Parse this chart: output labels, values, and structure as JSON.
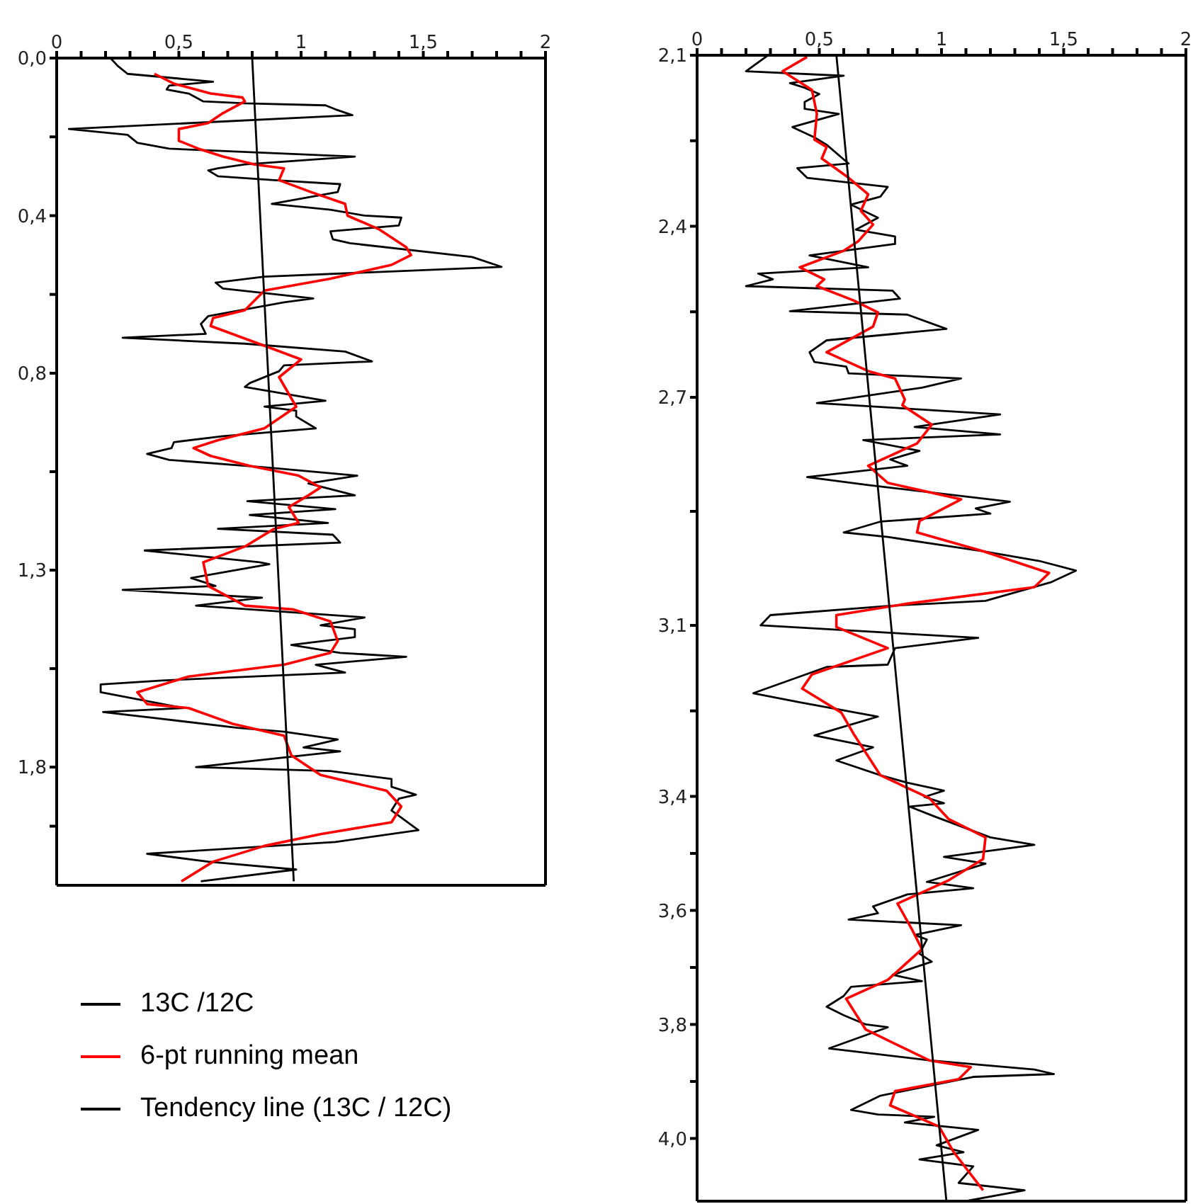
{
  "chart_data": [
    {
      "type": "line",
      "orientation": "horizontal",
      "legend": "bottom",
      "xlim": [
        0,
        2
      ],
      "xticks": [
        0,
        {
          "value": 0.1,
          "label": null
        },
        {
          "value": 0.2,
          "label": null
        },
        {
          "value": 0.3,
          "label": null
        },
        {
          "value": 0.4,
          "label": null
        },
        {
          "value": 0.5,
          "label": "0,5"
        },
        {
          "value": 0.6,
          "label": null
        },
        {
          "value": 0.7,
          "label": null
        },
        {
          "value": 0.8,
          "label": null
        },
        {
          "value": 0.9,
          "label": null
        },
        1,
        {
          "value": 1.1,
          "label": null
        },
        {
          "value": 1.2,
          "label": null
        },
        {
          "value": 1.3,
          "label": null
        },
        {
          "value": 1.4,
          "label": null
        },
        {
          "value": 1.5,
          "label": "1,5"
        },
        {
          "value": 1.6,
          "label": null
        },
        {
          "value": 1.7,
          "label": null
        },
        {
          "value": 1.8,
          "label": null
        },
        {
          "value": 1.9,
          "label": null
        },
        2
      ],
      "ylim": [
        2.1,
        0
      ],
      "yticks": [
        {
          "value": 0,
          "label": "0,0"
        },
        {
          "value": 0.2,
          "label": null
        },
        {
          "value": 0.4,
          "label": "0,4"
        },
        {
          "value": 0.6,
          "label": null
        },
        {
          "value": 0.8,
          "label": "0,8"
        },
        {
          "value": 1.05,
          "label": null
        },
        {
          "value": 1.3,
          "label": "1,3"
        },
        {
          "value": 1.55,
          "label": null
        },
        {
          "value": 1.8,
          "label": "1,8"
        },
        {
          "value": 1.95,
          "label": null
        }
      ],
      "series": [
        {
          "name": "13C /12C",
          "color": "#000000",
          "x": [
            0.0,
            0.02,
            0.04,
            0.06,
            0.07,
            0.08,
            0.09,
            0.11,
            0.115,
            0.12,
            0.13,
            0.145,
            0.18,
            0.195,
            0.215,
            0.23,
            0.25,
            0.27,
            0.28,
            0.285,
            0.3,
            0.31,
            0.32,
            0.34,
            0.37,
            0.385,
            0.4,
            0.405,
            0.425,
            0.44,
            0.46,
            0.47,
            0.505,
            0.53,
            0.555,
            0.57,
            0.585,
            0.61,
            0.62,
            0.655,
            0.675,
            0.7,
            0.71,
            0.725,
            0.745,
            0.77,
            0.78,
            0.795,
            0.825,
            0.835,
            0.87,
            0.885,
            0.895,
            0.91,
            0.94,
            0.96,
            0.975,
            0.99,
            1.005,
            1.02,
            1.04,
            1.06,
            1.08,
            1.11,
            1.125,
            1.145,
            1.16,
            1.18,
            1.195,
            1.21,
            1.23,
            1.25,
            1.28,
            1.285,
            1.32,
            1.34,
            1.35,
            1.37,
            1.39,
            1.42,
            1.44,
            1.45,
            1.47,
            1.49,
            1.51,
            1.52,
            1.54,
            1.56,
            1.58,
            1.59,
            1.61,
            1.65,
            1.66,
            1.7,
            1.71,
            1.73,
            1.75,
            1.76,
            1.8,
            1.81,
            1.83,
            1.85,
            1.87,
            1.88,
            1.91,
            1.96,
            1.99,
            2.02,
            2.04,
            2.06,
            2.09
          ],
          "values": [
            0.22,
            0.25,
            0.29,
            0.64,
            0.46,
            0.45,
            0.54,
            0.6,
            0.77,
            1.1,
            1.14,
            1.21,
            0.05,
            0.29,
            0.33,
            0.46,
            1.22,
            0.77,
            0.66,
            0.62,
            0.66,
            0.89,
            1.16,
            1.15,
            0.88,
            1.12,
            1.26,
            1.41,
            1.4,
            1.12,
            1.13,
            1.2,
            1.7,
            1.82,
            0.85,
            0.65,
            0.68,
            1.05,
            0.93,
            0.62,
            0.59,
            0.61,
            0.27,
            0.77,
            1.18,
            1.29,
            0.93,
            0.91,
            0.79,
            0.77,
            1.1,
            0.85,
            0.98,
            0.98,
            1.06,
            0.68,
            0.48,
            0.47,
            0.37,
            0.46,
            0.87,
            1.23,
            1.03,
            1.22,
            0.78,
            1.14,
            0.79,
            1.11,
            0.66,
            1.13,
            1.16,
            0.36,
            0.83,
            0.87,
            0.55,
            0.65,
            0.27,
            0.84,
            0.57,
            1.26,
            1.08,
            1.22,
            1.22,
            0.96,
            1.16,
            1.43,
            1.06,
            1.18,
            0.43,
            0.18,
            0.18,
            0.52,
            0.19,
            0.74,
            0.93,
            1.15,
            1.01,
            1.16,
            0.57,
            1.12,
            1.37,
            1.37,
            1.47,
            1.4,
            1.37,
            1.48,
            1.14,
            0.37,
            0.62,
            0.98,
            0.59
          ]
        },
        {
          "name": "6-pt running mean",
          "color": "#ff0000",
          "x": [
            0.04,
            0.065,
            0.09,
            0.1,
            0.11,
            0.14,
            0.165,
            0.18,
            0.21,
            0.23,
            0.25,
            0.27,
            0.28,
            0.31,
            0.34,
            0.37,
            0.4,
            0.435,
            0.48,
            0.5,
            0.525,
            0.56,
            0.59,
            0.64,
            0.66,
            0.68,
            0.735,
            0.765,
            0.81,
            0.885,
            0.94,
            0.97,
            0.99,
            1.01,
            1.035,
            1.06,
            1.09,
            1.11,
            1.14,
            1.18,
            1.195,
            1.24,
            1.28,
            1.34,
            1.39,
            1.4,
            1.43,
            1.48,
            1.51,
            1.54,
            1.57,
            1.61,
            1.64,
            1.65,
            1.69,
            1.72,
            1.77,
            1.82,
            1.86,
            1.9,
            1.94,
            1.97,
            2.0,
            2.04,
            2.09
          ],
          "values": [
            0.4,
            0.48,
            0.63,
            0.76,
            0.77,
            0.68,
            0.62,
            0.5,
            0.5,
            0.58,
            0.68,
            0.81,
            0.93,
            0.91,
            1.04,
            1.18,
            1.19,
            1.32,
            1.43,
            1.45,
            1.37,
            1.12,
            0.85,
            0.77,
            0.64,
            0.63,
            0.87,
            1.0,
            0.91,
            0.98,
            0.85,
            0.66,
            0.56,
            0.63,
            0.79,
            0.99,
            1.08,
            1.03,
            0.95,
            0.99,
            0.89,
            0.77,
            0.6,
            0.62,
            0.77,
            0.97,
            1.12,
            1.15,
            1.12,
            0.93,
            0.54,
            0.33,
            0.37,
            0.54,
            0.72,
            0.93,
            0.96,
            1.08,
            1.35,
            1.41,
            1.37,
            1.08,
            0.85,
            0.64,
            0.51
          ]
        },
        {
          "name": "Tendency line (13C / 12C)",
          "color": "#000000",
          "x": [
            0,
            2.09
          ],
          "values": [
            0.8,
            0.97
          ]
        }
      ]
    },
    {
      "type": "line",
      "orientation": "horizontal",
      "xlim": [
        0,
        2
      ],
      "xticks": [
        0,
        {
          "value": 0.1,
          "label": null
        },
        {
          "value": 0.2,
          "label": null
        },
        {
          "value": 0.3,
          "label": null
        },
        {
          "value": 0.4,
          "label": null
        },
        {
          "value": 0.5,
          "label": "0,5"
        },
        {
          "value": 0.6,
          "label": null
        },
        {
          "value": 0.7,
          "label": null
        },
        {
          "value": 0.8,
          "label": null
        },
        {
          "value": 0.9,
          "label": null
        },
        1,
        {
          "value": 1.1,
          "label": null
        },
        {
          "value": 1.2,
          "label": null
        },
        {
          "value": 1.3,
          "label": null
        },
        {
          "value": 1.4,
          "label": null
        },
        {
          "value": 1.5,
          "label": "1,5"
        },
        {
          "value": 1.6,
          "label": null
        },
        {
          "value": 1.7,
          "label": null
        },
        {
          "value": 1.8,
          "label": null
        },
        {
          "value": 1.9,
          "label": null
        },
        2
      ],
      "ylim": [
        4.11,
        2.1
      ],
      "yticks": [
        {
          "value": 2.1,
          "label": "2,1"
        },
        {
          "value": 2.25,
          "label": null
        },
        {
          "value": 2.4,
          "label": "2,4"
        },
        {
          "value": 2.55,
          "label": null
        },
        {
          "value": 2.7,
          "label": "2,7"
        },
        {
          "value": 2.9,
          "label": null
        },
        {
          "value": 3.1,
          "label": "3,1"
        },
        {
          "value": 3.25,
          "label": null
        },
        {
          "value": 3.4,
          "label": "3,4"
        },
        {
          "value": 3.5,
          "label": null
        },
        {
          "value": 3.6,
          "label": "3,6"
        },
        {
          "value": 3.7,
          "label": null
        },
        {
          "value": 3.8,
          "label": "3,8"
        },
        {
          "value": 3.9,
          "label": null
        },
        {
          "value": 4.0,
          "label": "4,0"
        }
      ],
      "series": [
        {
          "color": "#000000",
          "x": [
            2.1,
            2.128,
            2.136,
            2.149,
            2.157,
            2.168,
            2.182,
            2.194,
            2.203,
            2.226,
            2.244,
            2.257,
            2.29,
            2.298,
            2.315,
            2.331,
            2.348,
            2.362,
            2.385,
            2.406,
            2.418,
            2.431,
            2.451,
            2.472,
            2.483,
            2.493,
            2.505,
            2.513,
            2.527,
            2.549,
            2.555,
            2.58,
            2.6,
            2.621,
            2.638,
            2.646,
            2.658,
            2.667,
            2.683,
            2.71,
            2.73,
            2.752,
            2.765,
            2.775,
            2.794,
            2.809,
            2.82,
            2.84,
            2.854,
            2.883,
            2.895,
            2.904,
            2.918,
            2.937,
            2.945,
            2.97,
            2.987,
            3.004,
            3.024,
            3.057,
            3.066,
            3.082,
            3.1,
            3.122,
            3.14,
            3.169,
            3.173,
            3.219,
            3.235,
            3.26,
            3.293,
            3.314,
            3.337,
            3.363,
            3.376,
            3.39,
            3.401,
            3.412,
            3.418,
            3.435,
            3.472,
            3.485,
            3.506,
            3.518,
            3.55,
            3.561,
            3.572,
            3.593,
            3.605,
            3.616,
            3.626,
            3.643,
            3.651,
            3.676,
            3.69,
            3.713,
            3.724,
            3.734,
            3.75,
            3.769,
            3.784,
            3.8,
            3.805,
            3.842,
            3.863,
            3.879,
            3.887,
            3.892,
            3.925,
            3.95,
            3.958,
            3.962,
            3.972,
            3.985,
            4.012,
            4.024,
            4.037,
            4.049,
            4.078,
            4.091,
            4.109
          ],
          "values": [
            0.29,
            0.2,
            0.6,
            0.38,
            0.44,
            0.5,
            0.44,
            0.44,
            0.58,
            0.39,
            0.48,
            0.53,
            0.62,
            0.41,
            0.45,
            0.78,
            0.75,
            0.63,
            0.74,
            0.65,
            0.81,
            0.81,
            0.46,
            0.7,
            0.25,
            0.31,
            0.2,
            0.8,
            0.83,
            0.38,
            0.86,
            1.02,
            0.53,
            0.46,
            0.48,
            0.61,
            0.62,
            1.08,
            0.92,
            0.49,
            1.24,
            0.89,
            1.24,
            0.68,
            0.91,
            0.79,
            0.86,
            0.45,
            0.7,
            1.28,
            1.14,
            1.2,
            0.75,
            0.6,
            0.78,
            1.17,
            1.4,
            1.55,
            1.45,
            1.18,
            0.78,
            0.3,
            0.26,
            1.15,
            0.81,
            0.78,
            0.53,
            0.23,
            0.42,
            0.74,
            0.48,
            0.72,
            0.57,
            0.75,
            0.86,
            1.01,
            0.93,
            1.01,
            0.87,
            0.97,
            1.2,
            1.38,
            1.01,
            1.18,
            0.94,
            1.13,
            0.86,
            0.72,
            0.74,
            0.62,
            1.08,
            0.89,
            0.94,
            0.91,
            0.96,
            0.8,
            0.92,
            0.63,
            0.6,
            0.53,
            0.6,
            0.69,
            0.78,
            0.54,
            0.95,
            1.38,
            1.46,
            1.13,
            0.75,
            0.63,
            0.74,
            0.97,
            0.85,
            1.15,
            0.98,
            1.09,
            0.91,
            1.13,
            1.07,
            1.34,
            1.11
          ]
        },
        {
          "color": "#ff0000",
          "x": [
            2.103,
            2.128,
            2.161,
            2.203,
            2.248,
            2.261,
            2.281,
            2.315,
            2.344,
            2.373,
            2.397,
            2.426,
            2.443,
            2.472,
            2.493,
            2.505,
            2.53,
            2.551,
            2.576,
            2.621,
            2.654,
            2.667,
            2.704,
            2.714,
            2.748,
            2.781,
            2.82,
            2.85,
            2.879,
            2.917,
            2.937,
            2.97,
            3.008,
            3.033,
            3.062,
            3.082,
            3.103,
            3.14,
            3.186,
            3.211,
            3.253,
            3.29,
            3.363,
            3.403,
            3.44,
            3.472,
            3.51,
            3.547,
            3.588,
            3.634,
            3.668,
            3.722,
            3.755,
            3.809,
            3.863,
            3.875,
            3.896,
            3.917,
            3.942,
            3.979,
            4.024,
            4.091
          ],
          "values": [
            0.45,
            0.35,
            0.47,
            0.49,
            0.48,
            0.53,
            0.51,
            0.62,
            0.7,
            0.67,
            0.72,
            0.66,
            0.6,
            0.42,
            0.52,
            0.49,
            0.64,
            0.74,
            0.72,
            0.53,
            0.7,
            0.81,
            0.85,
            0.84,
            0.96,
            0.9,
            0.7,
            0.78,
            1.08,
            0.91,
            0.9,
            1.17,
            1.44,
            1.38,
            0.86,
            0.57,
            0.57,
            0.78,
            0.47,
            0.43,
            0.59,
            0.64,
            0.75,
            0.95,
            1.03,
            1.18,
            1.17,
            1.03,
            0.82,
            0.88,
            0.92,
            0.78,
            0.61,
            0.69,
            0.95,
            1.12,
            1.07,
            0.81,
            0.79,
            0.99,
            1.05,
            1.17
          ]
        },
        {
          "color": "#000000",
          "x": [
            2.1,
            4.11
          ],
          "values": [
            0.57,
            1.02
          ]
        }
      ]
    }
  ]
}
